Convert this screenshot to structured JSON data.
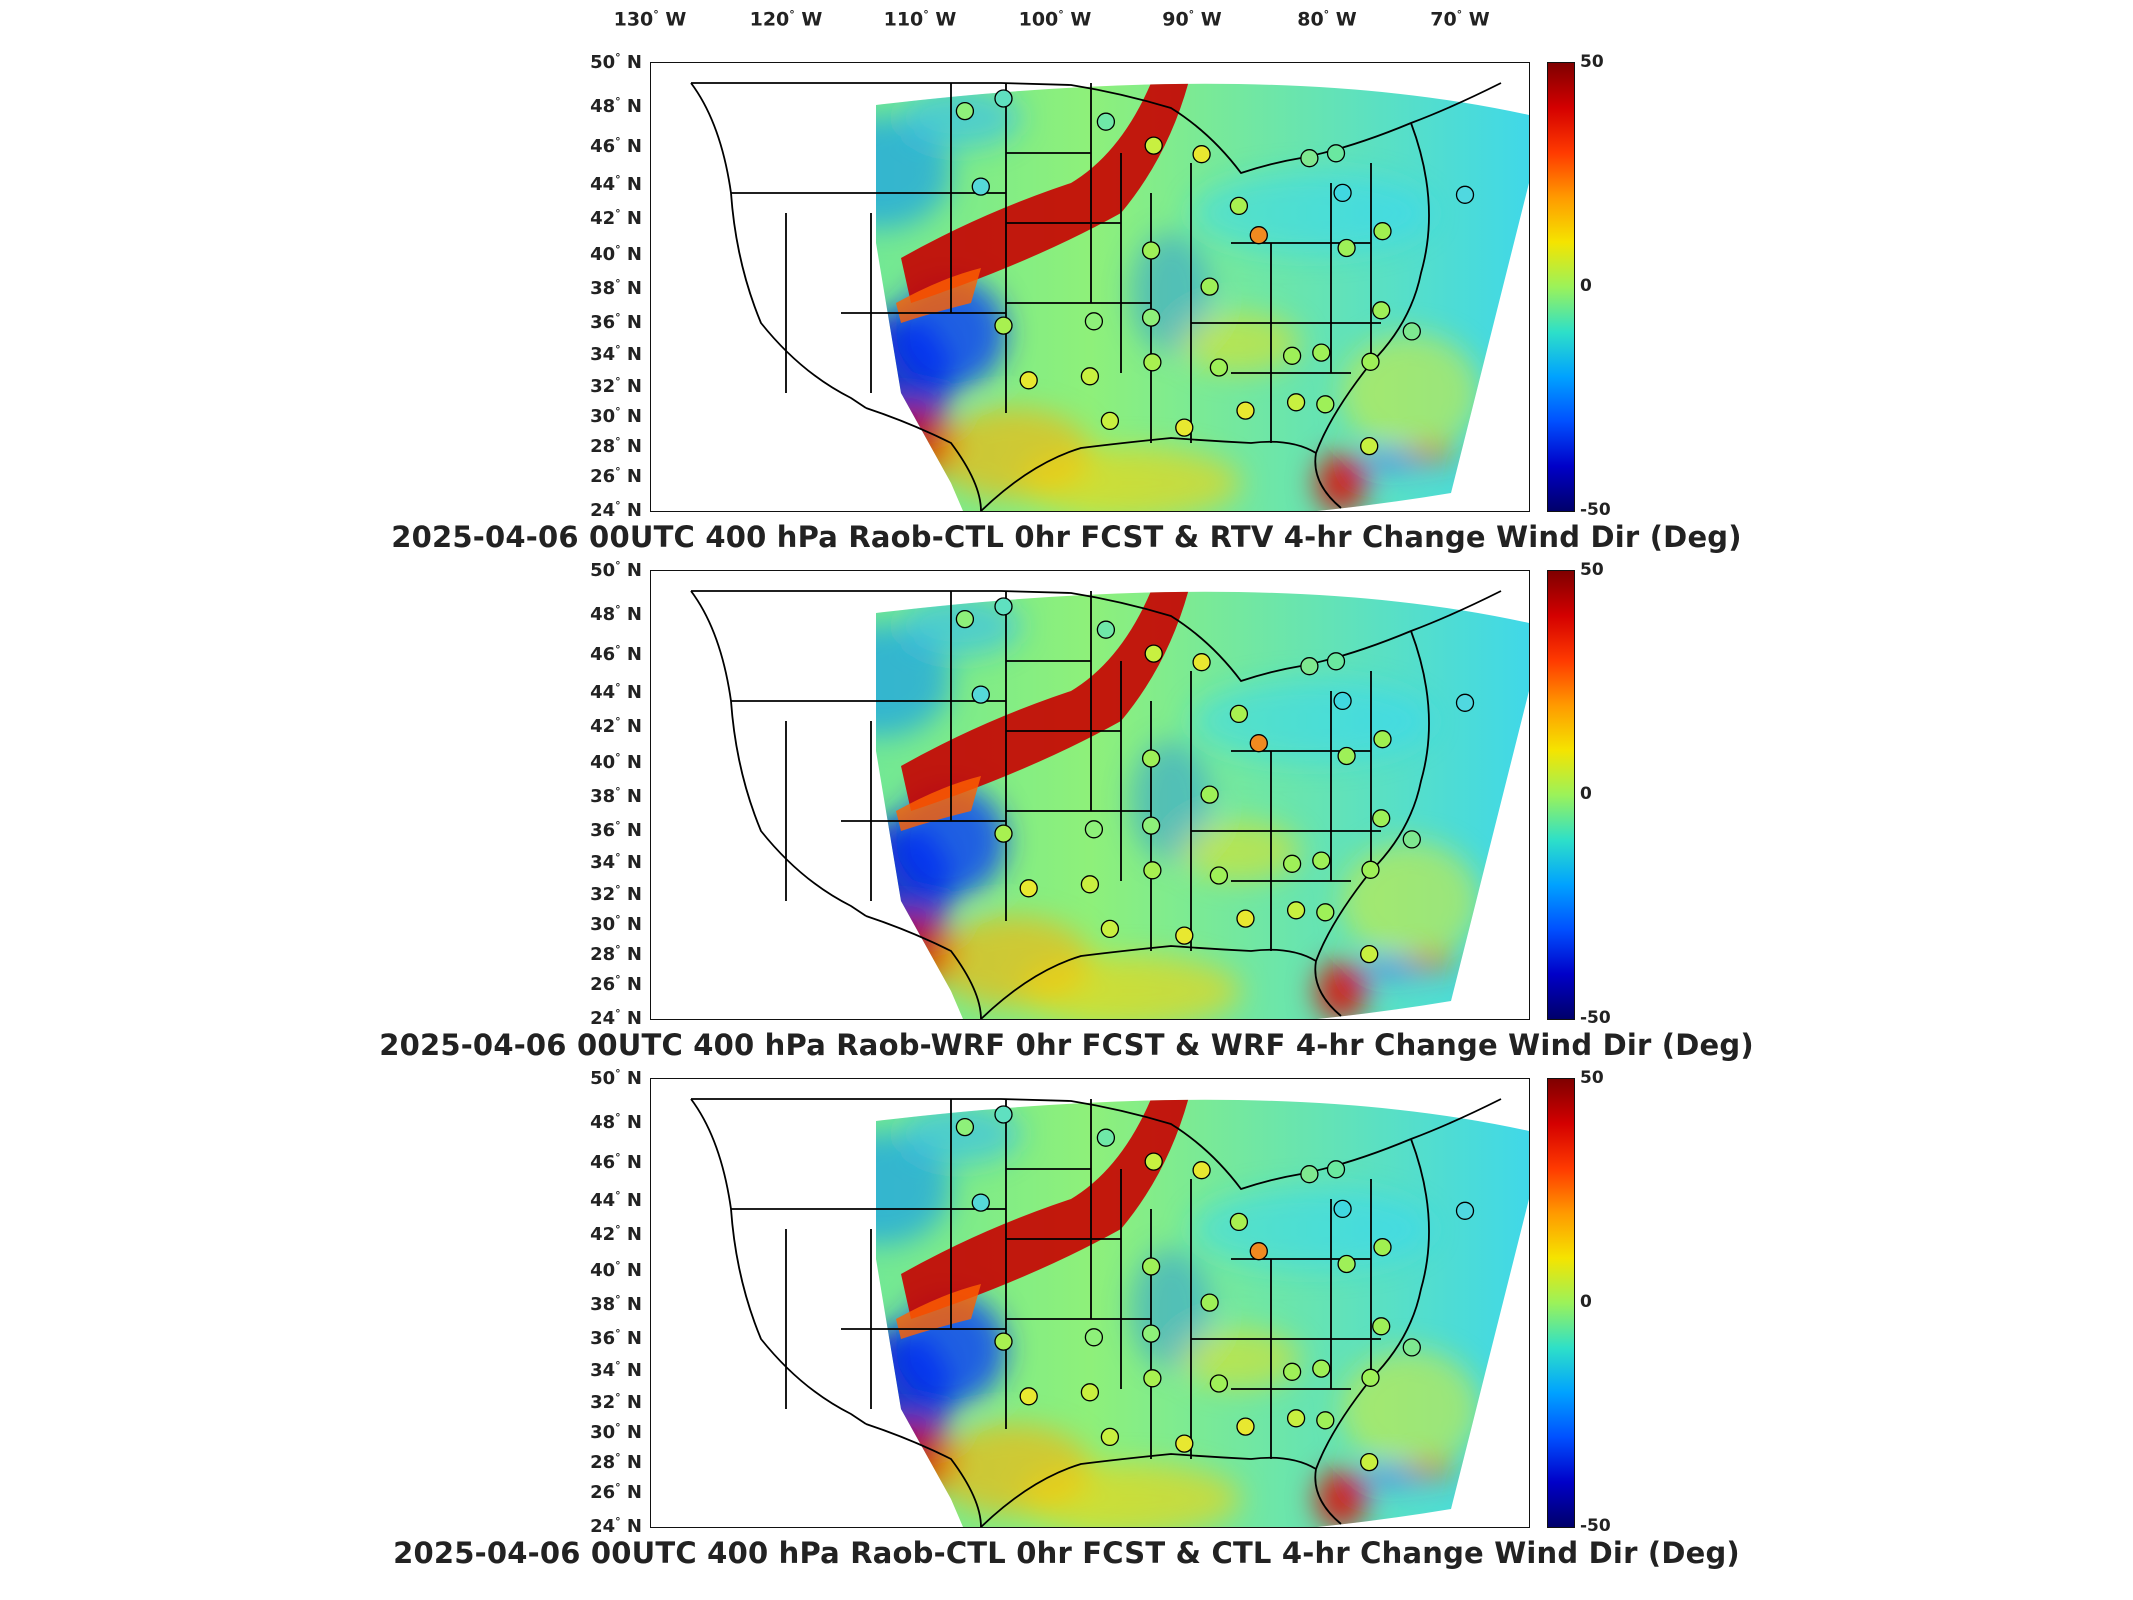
{
  "lon_labels": [
    {
      "deg": "130",
      "hem": "W"
    },
    {
      "deg": "120",
      "hem": "W"
    },
    {
      "deg": "110",
      "hem": "W"
    },
    {
      "deg": "100",
      "hem": "W"
    },
    {
      "deg": "90",
      "hem": "W"
    },
    {
      "deg": "80",
      "hem": "W"
    },
    {
      "deg": "70",
      "hem": "W"
    }
  ],
  "lat_labels": [
    {
      "deg": "50",
      "hem": "N"
    },
    {
      "deg": "48",
      "hem": "N"
    },
    {
      "deg": "46",
      "hem": "N"
    },
    {
      "deg": "44",
      "hem": "N"
    },
    {
      "deg": "42",
      "hem": "N"
    },
    {
      "deg": "40",
      "hem": "N"
    },
    {
      "deg": "38",
      "hem": "N"
    },
    {
      "deg": "36",
      "hem": "N"
    },
    {
      "deg": "34",
      "hem": "N"
    },
    {
      "deg": "32",
      "hem": "N"
    },
    {
      "deg": "30",
      "hem": "N"
    },
    {
      "deg": "28",
      "hem": "N"
    },
    {
      "deg": "26",
      "hem": "N"
    },
    {
      "deg": "24",
      "hem": "N"
    }
  ],
  "colorbar": {
    "max": "50",
    "mid": "0",
    "min": "-50"
  },
  "panels": [
    {
      "title": "2025-04-06 00UTC 400 hPa Raob-CTL 0hr FCST & RTV 4-hr Change Wind Dir (Deg)"
    },
    {
      "title": "2025-04-06 00UTC 400 hPa Raob-WRF 0hr FCST & WRF 4-hr Change Wind Dir (Deg)"
    },
    {
      "title": "2025-04-06 00UTC 400 hPa Raob-CTL 0hr FCST & CTL 4-hr Change Wind Dir (Deg)"
    }
  ],
  "stations": [
    {
      "lon": -111.4,
      "lat": 47.5,
      "color": "#8ef07a"
    },
    {
      "lon": -108.5,
      "lat": 48.2,
      "color": "#5fe0c0"
    },
    {
      "lon": -100.8,
      "lat": 46.8,
      "color": "#6fe8a8"
    },
    {
      "lon": -97.2,
      "lat": 45.4,
      "color": "#c8f040"
    },
    {
      "lon": -93.6,
      "lat": 44.9,
      "color": "#e8e830"
    },
    {
      "lon": -110.2,
      "lat": 43.1,
      "color": "#55d8d8"
    },
    {
      "lon": -97.4,
      "lat": 39.3,
      "color": "#9ef058"
    },
    {
      "lon": -89.3,
      "lat": 40.2,
      "color": "#f08a20"
    },
    {
      "lon": -90.8,
      "lat": 41.9,
      "color": "#a8f050"
    },
    {
      "lon": -85.5,
      "lat": 44.7,
      "color": "#7ee890"
    },
    {
      "lon": -83.5,
      "lat": 45.0,
      "color": "#6ae8a0"
    },
    {
      "lon": -83.0,
      "lat": 42.7,
      "color": "#40d8e0"
    },
    {
      "lon": -82.7,
      "lat": 39.5,
      "color": "#9ef058"
    },
    {
      "lon": -80.0,
      "lat": 40.5,
      "color": "#a0f050"
    },
    {
      "lon": -73.8,
      "lat": 42.7,
      "color": "#50d8e0"
    },
    {
      "lon": -93.0,
      "lat": 37.2,
      "color": "#9ef058"
    },
    {
      "lon": -101.7,
      "lat": 35.2,
      "color": "#8ef07a"
    },
    {
      "lon": -97.4,
      "lat": 35.4,
      "color": "#8ef07a"
    },
    {
      "lon": -108.5,
      "lat": 35.0,
      "color": "#a8f050"
    },
    {
      "lon": -102.0,
      "lat": 32.0,
      "color": "#c8f040"
    },
    {
      "lon": -97.3,
      "lat": 32.8,
      "color": "#a8f050"
    },
    {
      "lon": -92.3,
      "lat": 32.5,
      "color": "#9ef058"
    },
    {
      "lon": -86.8,
      "lat": 33.2,
      "color": "#9ef058"
    },
    {
      "lon": -84.6,
      "lat": 33.4,
      "color": "#9ef058"
    },
    {
      "lon": -80.1,
      "lat": 35.9,
      "color": "#9ef058"
    },
    {
      "lon": -77.8,
      "lat": 34.7,
      "color": "#7ee890"
    },
    {
      "lon": -80.9,
      "lat": 32.9,
      "color": "#9ef058"
    },
    {
      "lon": -100.5,
      "lat": 29.4,
      "color": "#c8f040"
    },
    {
      "lon": -94.9,
      "lat": 29.0,
      "color": "#e8e830"
    },
    {
      "lon": -90.3,
      "lat": 30.0,
      "color": "#e8e830"
    },
    {
      "lon": -86.5,
      "lat": 30.5,
      "color": "#c8f040"
    },
    {
      "lon": -84.3,
      "lat": 30.4,
      "color": "#9ef058"
    },
    {
      "lon": -81.0,
      "lat": 28.0,
      "color": "#c8f040"
    },
    {
      "lon": -106.6,
      "lat": 31.8,
      "color": "#e8e830"
    }
  ]
}
